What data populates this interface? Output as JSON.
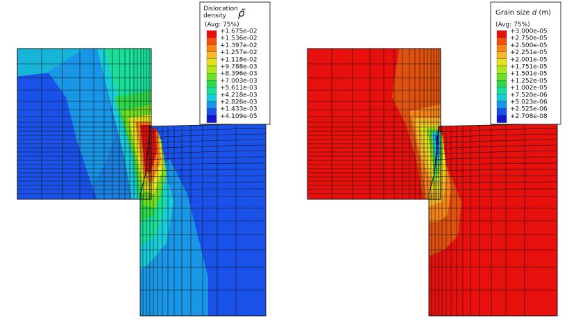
{
  "panels": [
    {
      "id": "dislocation-density",
      "legend": {
        "title_line1": "Dislocation",
        "title_line2": "density",
        "symbol": "ρ̃",
        "avg": "(Avg: 75%)",
        "values": [
          "+1.675e-02",
          "+1.536e-02",
          "+1.397e-02",
          "+1.257e-02",
          "+1.118e-02",
          "+9.788e-03",
          "+8.396e-03",
          "+7.003e-03",
          "+5.611e-03",
          "+4.218e-03",
          "+2.826e-03",
          "+1.433e-03",
          "+4.109e-05"
        ]
      }
    },
    {
      "id": "grain-size",
      "legend": {
        "title_line1": "Grain size",
        "title_var": "d",
        "title_unit": "(m)",
        "avg": "(Avg: 75%)",
        "values": [
          "+3.000e-05",
          "+2.750e-05",
          "+2.500e-05",
          "+2.251e-05",
          "+2.001e-05",
          "+1.751e-05",
          "+1.501e-05",
          "+1.252e-05",
          "+1.002e-05",
          "+7.520e-06",
          "+5.023e-06",
          "+2.525e-06",
          "+2.708e-08"
        ]
      }
    }
  ],
  "colors": {
    "scale": [
      "#e8100d",
      "#f04f0e",
      "#f7851a",
      "#f3b928",
      "#e4e21d",
      "#b0e51a",
      "#6fdf23",
      "#2ed84a",
      "#19df9a",
      "#18cddb",
      "#1997e6",
      "#1a52e9",
      "#1414d2"
    ],
    "mesh": "#111111"
  }
}
